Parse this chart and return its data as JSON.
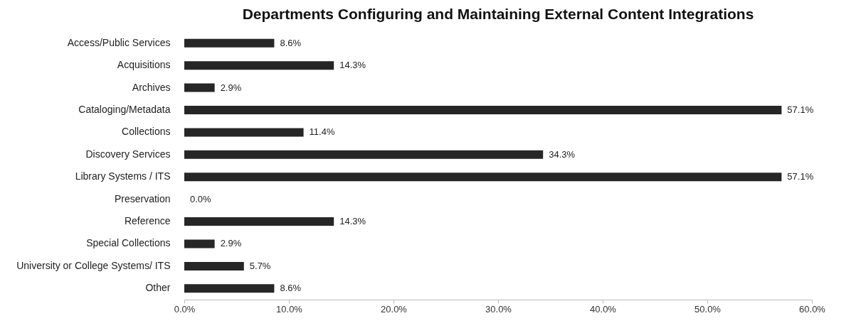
{
  "chart_data": {
    "type": "bar",
    "orientation": "horizontal",
    "title": "Departments Configuring and Maintaining External Content Integrations",
    "categories": [
      "Access/Public Services",
      "Acquisitions",
      "Archives",
      "Cataloging/Metadata",
      "Collections",
      "Discovery Services",
      "Library Systems / ITS",
      "Preservation",
      "Reference",
      "Special Collections",
      "University or College Systems/ ITS",
      "Other"
    ],
    "values": [
      8.6,
      14.3,
      2.9,
      57.1,
      11.4,
      34.3,
      57.1,
      0.0,
      14.3,
      2.9,
      5.7,
      8.6
    ],
    "value_labels": [
      "8.6%",
      "14.3%",
      "2.9%",
      "57.1%",
      "11.4%",
      "34.3%",
      "57.1%",
      "0.0%",
      "14.3%",
      "2.9%",
      "5.7%",
      "8.6%"
    ],
    "color": "#262626",
    "xlim": [
      0,
      60
    ],
    "xticks": [
      {
        "value": 0,
        "label": "0.0%"
      },
      {
        "value": 10,
        "label": "10.0%"
      },
      {
        "value": 20,
        "label": "20.0%"
      },
      {
        "value": 30,
        "label": "30.0%"
      },
      {
        "value": 40,
        "label": "40.0%"
      },
      {
        "value": 50,
        "label": "50.0%"
      },
      {
        "value": 60,
        "label": "60.0%"
      }
    ],
    "grid": false
  }
}
